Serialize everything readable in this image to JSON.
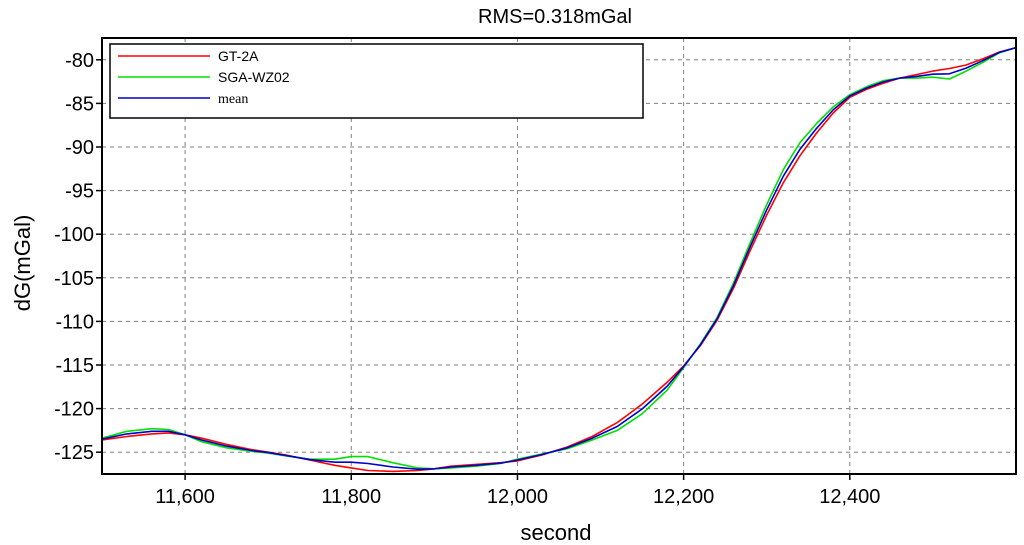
{
  "chart_data": {
    "type": "line",
    "title": "RMS=0.318mGal",
    "xlabel": "second",
    "ylabel": "dG(mGal)",
    "xlim": [
      11500,
      12600
    ],
    "ylim": [
      -127.5,
      -77.5
    ],
    "x_ticks": [
      11600,
      11800,
      12000,
      12200,
      12400
    ],
    "x_tick_labels": [
      "11,600",
      "11,800",
      "12,000",
      "12,200",
      "12,400"
    ],
    "y_ticks": [
      -80,
      -85,
      -90,
      -95,
      -100,
      -105,
      -110,
      -115,
      -120,
      -125
    ],
    "y_tick_labels": [
      "-80",
      "-85",
      "-90",
      "-95",
      "-100",
      "-105",
      "-110",
      "-115",
      "-120",
      "-125"
    ],
    "grid": true,
    "legend_position": "top-left",
    "series": [
      {
        "name": "GT-2A",
        "color": "#ff0000",
        "x": [
          11500,
          11530,
          11560,
          11580,
          11600,
          11620,
          11650,
          11680,
          11700,
          11720,
          11750,
          11780,
          11800,
          11820,
          11850,
          11880,
          11900,
          11920,
          11950,
          11980,
          12000,
          12030,
          12060,
          12090,
          12120,
          12150,
          12180,
          12200,
          12220,
          12240,
          12260,
          12280,
          12300,
          12320,
          12340,
          12360,
          12380,
          12400,
          12420,
          12440,
          12460,
          12480,
          12500,
          12520,
          12540,
          12560,
          12580,
          12600
        ],
        "y": [
          -123.6,
          -123.2,
          -122.9,
          -122.8,
          -123.0,
          -123.4,
          -124.1,
          -124.7,
          -125.0,
          -125.3,
          -125.9,
          -126.5,
          -126.8,
          -127.1,
          -127.2,
          -127.1,
          -126.9,
          -126.6,
          -126.4,
          -126.2,
          -126.0,
          -125.3,
          -124.4,
          -123.2,
          -121.6,
          -119.5,
          -117.0,
          -115.1,
          -112.8,
          -109.9,
          -106.2,
          -101.9,
          -97.8,
          -94.1,
          -91.0,
          -88.4,
          -86.1,
          -84.3,
          -83.4,
          -82.7,
          -82.1,
          -81.7,
          -81.3,
          -81.0,
          -80.6,
          -79.9,
          -79.1,
          -78.6
        ]
      },
      {
        "name": "SGA-WZ02",
        "color": "#00e000",
        "x": [
          11500,
          11530,
          11560,
          11580,
          11600,
          11620,
          11650,
          11680,
          11700,
          11720,
          11750,
          11780,
          11800,
          11820,
          11850,
          11880,
          11900,
          11920,
          11950,
          11980,
          12000,
          12030,
          12060,
          12090,
          12120,
          12150,
          12180,
          12200,
          12220,
          12240,
          12260,
          12280,
          12300,
          12320,
          12340,
          12360,
          12380,
          12400,
          12420,
          12440,
          12460,
          12480,
          12500,
          12520,
          12540,
          12560,
          12580,
          12600
        ],
        "y": [
          -123.4,
          -122.6,
          -122.3,
          -122.4,
          -123.0,
          -123.8,
          -124.5,
          -124.9,
          -125.1,
          -125.4,
          -125.8,
          -125.8,
          -125.5,
          -125.5,
          -126.2,
          -126.8,
          -126.9,
          -126.8,
          -126.6,
          -126.3,
          -125.8,
          -125.2,
          -124.6,
          -123.6,
          -122.5,
          -120.6,
          -117.9,
          -115.3,
          -112.6,
          -109.6,
          -105.6,
          -101.0,
          -96.6,
          -92.6,
          -89.5,
          -87.3,
          -85.4,
          -84.0,
          -83.1,
          -82.4,
          -82.1,
          -82.1,
          -82.0,
          -82.2,
          -81.3,
          -80.3,
          -79.2,
          -78.6
        ]
      },
      {
        "name": "mean",
        "color": "#0000cc",
        "x": [
          11500,
          11530,
          11560,
          11580,
          11600,
          11620,
          11650,
          11680,
          11700,
          11720,
          11750,
          11780,
          11800,
          11820,
          11850,
          11880,
          11900,
          11920,
          11950,
          11980,
          12000,
          12030,
          12060,
          12090,
          12120,
          12150,
          12180,
          12200,
          12220,
          12240,
          12260,
          12280,
          12300,
          12320,
          12340,
          12360,
          12380,
          12400,
          12420,
          12440,
          12460,
          12480,
          12500,
          12520,
          12540,
          12560,
          12580,
          12600
        ],
        "y": [
          -123.5,
          -122.9,
          -122.6,
          -122.6,
          -123.0,
          -123.6,
          -124.3,
          -124.8,
          -125.05,
          -125.35,
          -125.85,
          -126.15,
          -126.15,
          -126.3,
          -126.7,
          -126.95,
          -126.9,
          -126.7,
          -126.5,
          -126.25,
          -125.9,
          -125.25,
          -124.5,
          -123.4,
          -122.05,
          -120.05,
          -117.45,
          -115.2,
          -112.7,
          -109.75,
          -105.9,
          -101.45,
          -97.2,
          -93.35,
          -90.25,
          -87.85,
          -85.75,
          -84.15,
          -83.25,
          -82.55,
          -82.1,
          -81.9,
          -81.65,
          -81.6,
          -80.95,
          -80.1,
          -79.15,
          -78.6
        ]
      }
    ]
  }
}
